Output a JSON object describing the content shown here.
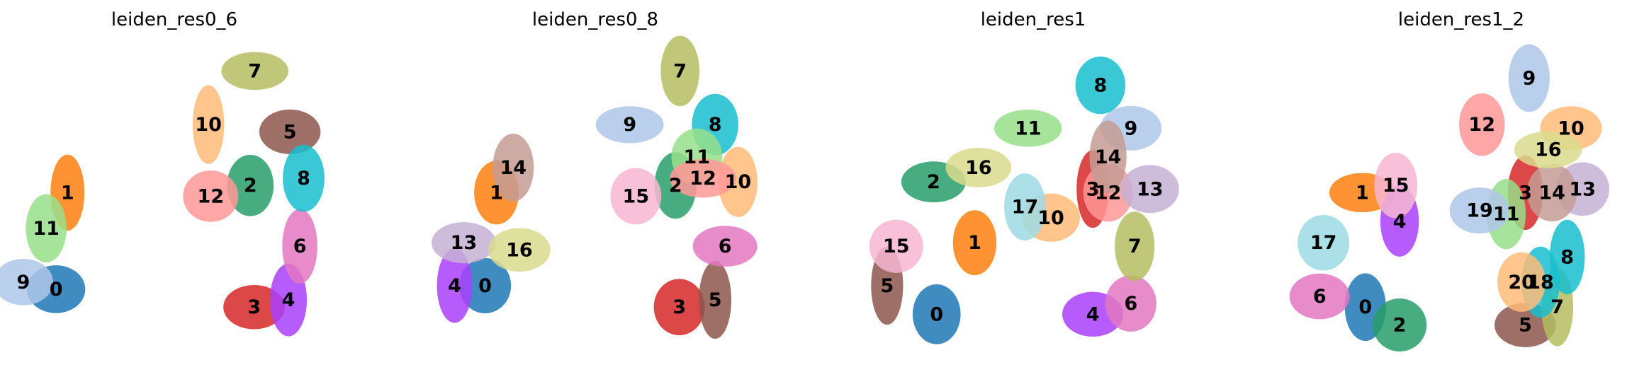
{
  "chart_data": [
    {
      "type": "scatter",
      "title": "leiden_res0_6",
      "clusters": [
        {
          "label": "0",
          "color": "#1f77b4",
          "x": 0.55,
          "y": 0.57
        },
        {
          "label": "1",
          "color": "#ff7f0e",
          "x": 0.7,
          "y": 0.3
        },
        {
          "label": "2",
          "color": "#279e68",
          "x": 3.1,
          "y": 0.28
        },
        {
          "label": "3",
          "color": "#d62728",
          "x": 3.15,
          "y": 0.62
        },
        {
          "label": "4",
          "color": "#aa40fc",
          "x": 3.6,
          "y": 0.6
        },
        {
          "label": "5",
          "color": "#8c564b",
          "x": 3.62,
          "y": 0.13
        },
        {
          "label": "6",
          "color": "#e377c2",
          "x": 3.75,
          "y": 0.45
        },
        {
          "label": "7",
          "color": "#b5bd61",
          "x": 3.16,
          "y": -0.04
        },
        {
          "label": "8",
          "color": "#17becf",
          "x": 3.8,
          "y": 0.26
        },
        {
          "label": "9",
          "color": "#aec7e8",
          "x": 0.12,
          "y": 0.55
        },
        {
          "label": "10",
          "color": "#ffbb78",
          "x": 2.55,
          "y": 0.11
        },
        {
          "label": "11",
          "color": "#98df8a",
          "x": 0.42,
          "y": 0.4
        },
        {
          "label": "12",
          "color": "#ff9896",
          "x": 2.58,
          "y": 0.31
        }
      ]
    },
    {
      "type": "scatter",
      "title": "leiden_res0_8",
      "clusters": [
        {
          "label": "0",
          "color": "#1f77b4",
          "x": 0.6,
          "y": 0.56
        },
        {
          "label": "1",
          "color": "#ff7f0e",
          "x": 0.75,
          "y": 0.3
        },
        {
          "label": "2",
          "color": "#279e68",
          "x": 3.1,
          "y": 0.28
        },
        {
          "label": "3",
          "color": "#d62728",
          "x": 3.15,
          "y": 0.62
        },
        {
          "label": "4",
          "color": "#aa40fc",
          "x": 0.2,
          "y": 0.56
        },
        {
          "label": "5",
          "color": "#8c564b",
          "x": 3.62,
          "y": 0.6
        },
        {
          "label": "6",
          "color": "#e377c2",
          "x": 3.75,
          "y": 0.45
        },
        {
          "label": "7",
          "color": "#b5bd61",
          "x": 3.16,
          "y": -0.04
        },
        {
          "label": "8",
          "color": "#17becf",
          "x": 3.62,
          "y": 0.11
        },
        {
          "label": "9",
          "color": "#aec7e8",
          "x": 2.5,
          "y": 0.11
        },
        {
          "label": "10",
          "color": "#ffbb78",
          "x": 3.92,
          "y": 0.27
        },
        {
          "label": "11",
          "color": "#98df8a",
          "x": 3.38,
          "y": 0.2
        },
        {
          "label": "12",
          "color": "#ff9896",
          "x": 3.46,
          "y": 0.26
        },
        {
          "label": "13",
          "color": "#c5b0d5",
          "x": 0.32,
          "y": 0.44
        },
        {
          "label": "14",
          "color": "#c49c94",
          "x": 0.97,
          "y": 0.23
        },
        {
          "label": "15",
          "color": "#f7b6d2",
          "x": 2.58,
          "y": 0.31
        },
        {
          "label": "16",
          "color": "#dbdb8d",
          "x": 1.05,
          "y": 0.46
        }
      ]
    },
    {
      "type": "scatter",
      "title": "leiden_res1",
      "clusters": [
        {
          "label": "0",
          "color": "#1f77b4",
          "x": 0.9,
          "y": 0.64
        },
        {
          "label": "1",
          "color": "#ff7f0e",
          "x": 1.4,
          "y": 0.44
        },
        {
          "label": "2",
          "color": "#279e68",
          "x": 0.86,
          "y": 0.27
        },
        {
          "label": "3",
          "color": "#d62728",
          "x": 2.95,
          "y": 0.29
        },
        {
          "label": "4",
          "color": "#aa40fc",
          "x": 2.95,
          "y": 0.64
        },
        {
          "label": "5",
          "color": "#8c564b",
          "x": 0.25,
          "y": 0.56
        },
        {
          "label": "6",
          "color": "#e377c2",
          "x": 3.45,
          "y": 0.61
        },
        {
          "label": "7",
          "color": "#b5bd61",
          "x": 3.5,
          "y": 0.45
        },
        {
          "label": "8",
          "color": "#17becf",
          "x": 3.05,
          "y": 0.0
        },
        {
          "label": "9",
          "color": "#aec7e8",
          "x": 3.45,
          "y": 0.12
        },
        {
          "label": "10",
          "color": "#ffbb78",
          "x": 2.4,
          "y": 0.37
        },
        {
          "label": "11",
          "color": "#98df8a",
          "x": 2.1,
          "y": 0.12
        },
        {
          "label": "12",
          "color": "#ff9896",
          "x": 3.15,
          "y": 0.3
        },
        {
          "label": "13",
          "color": "#c5b0d5",
          "x": 3.7,
          "y": 0.29
        },
        {
          "label": "14",
          "color": "#c49c94",
          "x": 3.15,
          "y": 0.2
        },
        {
          "label": "15",
          "color": "#f7b6d2",
          "x": 0.37,
          "y": 0.45
        },
        {
          "label": "16",
          "color": "#dbdb8d",
          "x": 1.45,
          "y": 0.23
        },
        {
          "label": "17",
          "color": "#9edae5",
          "x": 2.06,
          "y": 0.34
        }
      ]
    },
    {
      "type": "scatter",
      "title": "leiden_res1_2",
      "clusters": [
        {
          "label": "0",
          "color": "#1f77b4",
          "x": 0.9,
          "y": 0.62
        },
        {
          "label": "1",
          "color": "#ff7f0e",
          "x": 0.86,
          "y": 0.3
        },
        {
          "label": "2",
          "color": "#279e68",
          "x": 1.35,
          "y": 0.67
        },
        {
          "label": "3",
          "color": "#d62728",
          "x": 3.0,
          "y": 0.3
        },
        {
          "label": "4",
          "color": "#aa40fc",
          "x": 1.35,
          "y": 0.38
        },
        {
          "label": "5",
          "color": "#8c564b",
          "x": 3.0,
          "y": 0.67
        },
        {
          "label": "6",
          "color": "#e377c2",
          "x": 0.3,
          "y": 0.59
        },
        {
          "label": "7",
          "color": "#b5bd61",
          "x": 3.42,
          "y": 0.62
        },
        {
          "label": "8",
          "color": "#17becf",
          "x": 3.55,
          "y": 0.48
        },
        {
          "label": "9",
          "color": "#aec7e8",
          "x": 3.05,
          "y": -0.02
        },
        {
          "label": "10",
          "color": "#ffbb78",
          "x": 3.6,
          "y": 0.12
        },
        {
          "label": "11",
          "color": "#98df8a",
          "x": 2.75,
          "y": 0.36
        },
        {
          "label": "12",
          "color": "#ff9896",
          "x": 2.43,
          "y": 0.11
        },
        {
          "label": "13",
          "color": "#c5b0d5",
          "x": 3.75,
          "y": 0.29
        },
        {
          "label": "14",
          "color": "#c49c94",
          "x": 3.35,
          "y": 0.3
        },
        {
          "label": "15",
          "color": "#f7b6d2",
          "x": 1.3,
          "y": 0.28
        },
        {
          "label": "16",
          "color": "#dbdb8d",
          "x": 3.3,
          "y": 0.18
        },
        {
          "label": "17",
          "color": "#9edae5",
          "x": 0.35,
          "y": 0.44
        },
        {
          "label": "18",
          "color": "#17becf",
          "x": 3.2,
          "y": 0.55
        },
        {
          "label": "19",
          "color": "#aec7e8",
          "x": 2.4,
          "y": 0.35
        },
        {
          "label": "20",
          "color": "#ffbb78",
          "x": 2.95,
          "y": 0.55
        }
      ]
    }
  ]
}
